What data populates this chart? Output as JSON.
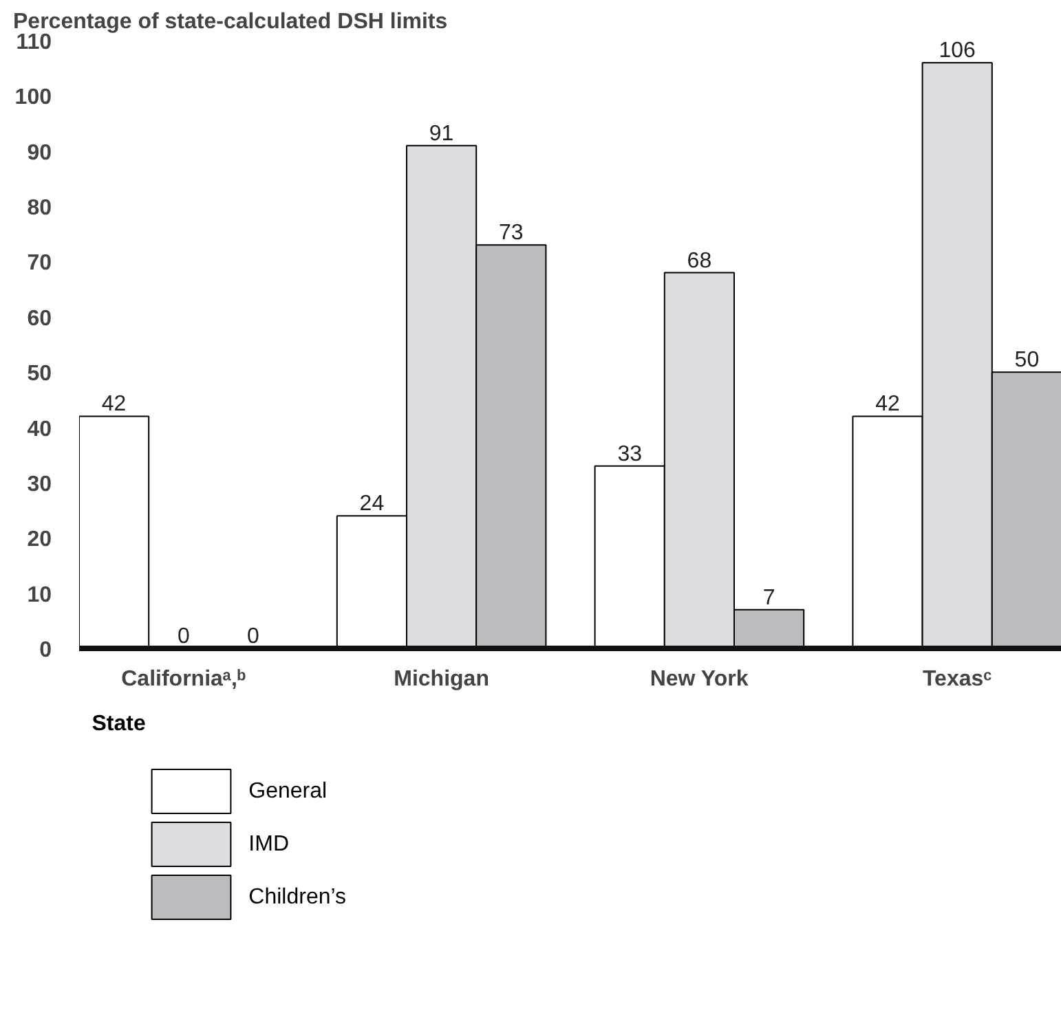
{
  "chart_data": {
    "type": "bar",
    "ylabel": "Percentage of state-calculated DSH limits",
    "xlabel": "State",
    "categories": [
      "Californiaᵃ,ᵇ",
      "Michigan",
      "New York",
      "Texasᶜ"
    ],
    "series": [
      {
        "name": "General",
        "color": "#ffffff",
        "values": [
          42,
          24,
          33,
          42
        ]
      },
      {
        "name": "IMD",
        "color": "#dcdde0",
        "values": [
          0,
          91,
          68,
          106
        ]
      },
      {
        "name": "Children’s",
        "color": "#bcbcc0",
        "values": [
          0,
          73,
          7,
          50
        ]
      }
    ],
    "ylim": [
      0,
      110
    ],
    "yticks": [
      0,
      10,
      20,
      30,
      40,
      50,
      60,
      70,
      80,
      90,
      100,
      110
    ],
    "data_labels": true,
    "legend": "bottom"
  }
}
